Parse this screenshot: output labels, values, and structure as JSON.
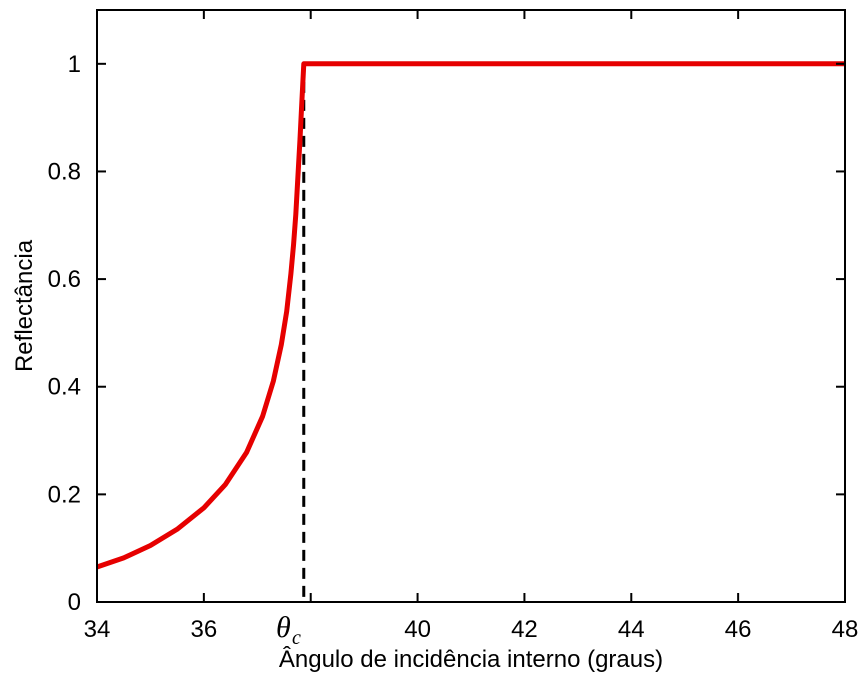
{
  "chart_data": {
    "type": "line",
    "xlabel": "Ângulo de incidência interno (graus)",
    "ylabel": "Reflectância",
    "xlim": [
      34,
      48
    ],
    "ylim": [
      0,
      1.1
    ],
    "x_ticks": [
      34,
      36,
      40,
      42,
      44,
      46,
      48
    ],
    "x_tick_labels": [
      "34",
      "36",
      "40",
      "42",
      "44",
      "46",
      "48"
    ],
    "y_ticks": [
      0,
      0.2,
      0.4,
      0.6,
      0.8,
      1
    ],
    "y_tick_labels": [
      "0",
      "0.2",
      "0.4",
      "0.6",
      "0.8",
      "1"
    ],
    "grid": false,
    "series": [
      {
        "color": "#e60000",
        "line_style": "solid",
        "x": [
          34.0,
          34.5,
          35.0,
          35.5,
          36.0,
          36.4,
          36.8,
          37.1,
          37.3,
          37.45,
          37.55,
          37.63,
          37.68,
          37.72,
          37.76,
          37.8,
          37.83,
          37.87,
          48.0
        ],
        "y": [
          0.065,
          0.082,
          0.105,
          0.135,
          0.175,
          0.218,
          0.278,
          0.345,
          0.41,
          0.478,
          0.54,
          0.61,
          0.665,
          0.72,
          0.79,
          0.86,
          0.92,
          1.0,
          1.0
        ]
      }
    ],
    "annotations": [
      {
        "type": "vertical-dashed-line",
        "x": 37.87,
        "color": "#000000",
        "label_main": "θ",
        "label_sub": "c"
      }
    ]
  }
}
